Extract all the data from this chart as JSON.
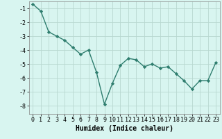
{
  "x": [
    0,
    1,
    2,
    3,
    4,
    5,
    6,
    7,
    8,
    9,
    10,
    11,
    12,
    13,
    14,
    15,
    16,
    17,
    18,
    19,
    20,
    21,
    22,
    23
  ],
  "y": [
    -0.7,
    -1.2,
    -2.7,
    -3.0,
    -3.3,
    -3.8,
    -4.3,
    -4.0,
    -5.6,
    -7.9,
    -6.4,
    -5.1,
    -4.6,
    -4.7,
    -5.2,
    -5.0,
    -5.3,
    -5.2,
    -5.7,
    -6.2,
    -6.8,
    -6.2,
    -6.2,
    -4.9
  ],
  "line_color": "#2e7d6e",
  "marker": "D",
  "marker_size": 2.2,
  "bg_color": "#d8f5f0",
  "grid_color": "#b8d8d0",
  "xlabel": "Humidex (Indice chaleur)",
  "xlim": [
    -0.5,
    23.5
  ],
  "ylim": [
    -8.6,
    -0.5
  ],
  "yticks": [
    -8,
    -7,
    -6,
    -5,
    -4,
    -3,
    -2,
    -1
  ],
  "xticks": [
    0,
    1,
    2,
    3,
    4,
    5,
    6,
    7,
    8,
    9,
    10,
    11,
    12,
    13,
    14,
    15,
    16,
    17,
    18,
    19,
    20,
    21,
    22,
    23
  ],
  "xlabel_fontsize": 7,
  "tick_fontsize": 6,
  "line_width": 1.0
}
